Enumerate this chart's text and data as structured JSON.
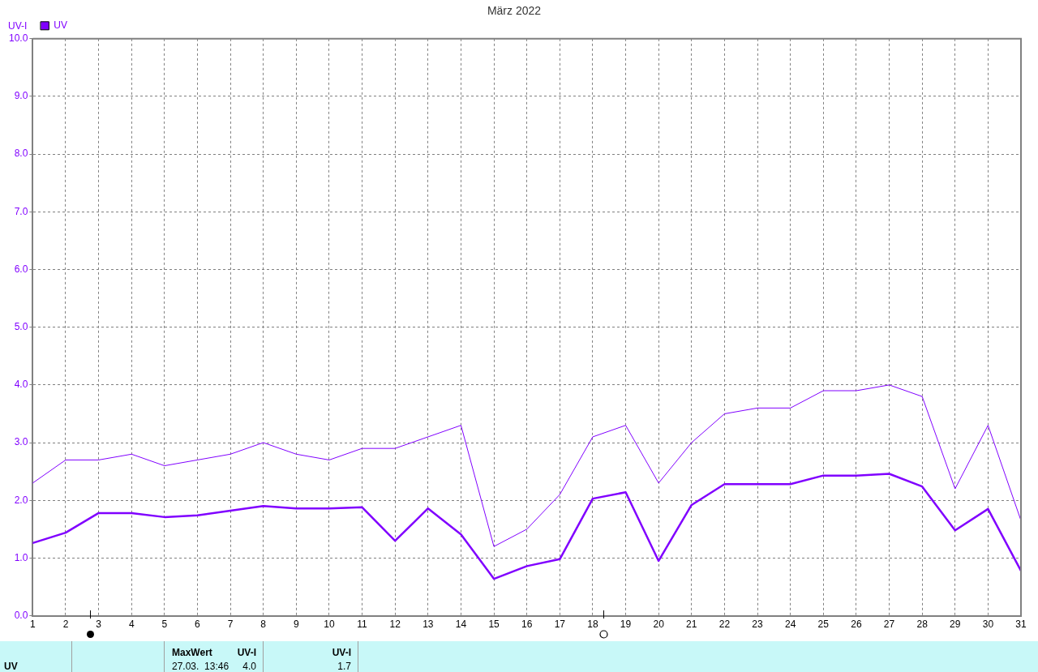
{
  "chart_data": {
    "type": "line",
    "title": "März 2022",
    "ylabel": "UV-I",
    "x": [
      1,
      2,
      3,
      4,
      5,
      6,
      7,
      8,
      9,
      10,
      11,
      12,
      13,
      14,
      15,
      16,
      17,
      18,
      19,
      20,
      21,
      22,
      23,
      24,
      25,
      26,
      27,
      28,
      29,
      30,
      31
    ],
    "series": [
      {
        "name": "UV",
        "color": "#8000ff",
        "values": [
          2.3,
          2.7,
          2.7,
          2.8,
          2.6,
          2.7,
          2.8,
          3.0,
          2.8,
          2.7,
          2.9,
          2.9,
          3.1,
          3.3,
          1.2,
          1.5,
          2.1,
          3.1,
          3.3,
          2.3,
          3.0,
          3.5,
          3.6,
          3.6,
          3.9,
          3.9,
          4.0,
          3.8,
          2.2,
          3.3,
          1.65
        ]
      },
      {
        "color": "#8000ff",
        "values": [
          1.26,
          1.44,
          1.78,
          1.78,
          1.71,
          1.74,
          1.82,
          1.9,
          1.86,
          1.86,
          1.88,
          1.3,
          1.86,
          1.41,
          0.64,
          0.86,
          0.98,
          2.03,
          2.14,
          0.95,
          1.92,
          2.28,
          2.28,
          2.28,
          2.43,
          2.43,
          2.46,
          2.24,
          1.48,
          1.85,
          0.78
        ]
      }
    ],
    "xlim": [
      1,
      31
    ],
    "xticks": [
      1,
      2,
      3,
      4,
      5,
      6,
      7,
      8,
      9,
      10,
      11,
      12,
      13,
      14,
      15,
      16,
      17,
      18,
      19,
      20,
      21,
      22,
      23,
      24,
      25,
      26,
      27,
      28,
      29,
      30,
      31
    ],
    "ylim": [
      0,
      10
    ],
    "yticks": [
      {
        "value": 0,
        "label": "0.0"
      },
      {
        "value": 1,
        "label": "1.0"
      },
      {
        "value": 2,
        "label": "2.0"
      },
      {
        "value": 3,
        "label": "3.0"
      },
      {
        "value": 4,
        "label": "4.0"
      },
      {
        "value": 5,
        "label": "5.0"
      },
      {
        "value": 6,
        "label": "6.0"
      },
      {
        "value": 7,
        "label": "7.0"
      },
      {
        "value": 8,
        "label": "8.0"
      },
      {
        "value": 9,
        "label": "9.0"
      },
      {
        "value": 10,
        "label": "10.0"
      }
    ],
    "grid": true,
    "legend": "top left",
    "line_style": "solid",
    "annotations": [
      "UV",
      "MaxWert",
      "UV-I",
      "27.03.  13:46",
      "4.0",
      "UV-I",
      "1.7"
    ]
  }
}
